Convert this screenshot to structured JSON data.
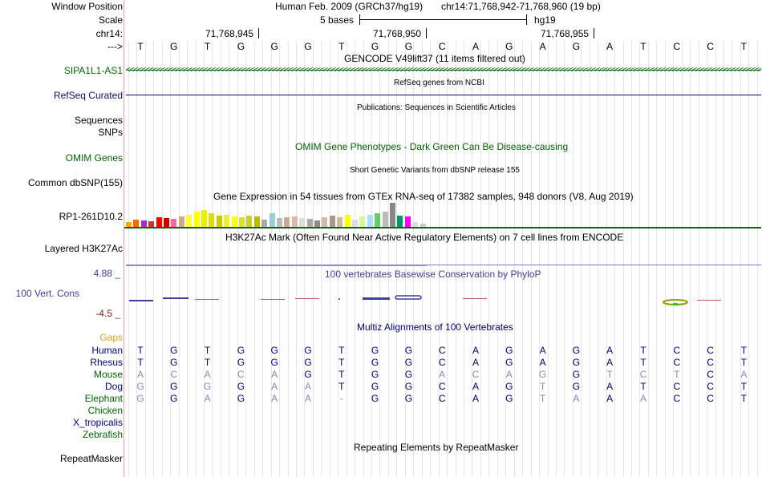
{
  "header": {
    "window_position_label": "Window Position",
    "assembly": "Human Feb. 2009 (GRCh37/hg19)",
    "position": "chr14:71,768,942-71,768,960 (19 bp)",
    "scale_label": "Scale",
    "scale_text": "5 bases",
    "scale_db": "hg19",
    "chrom_label": "chr14:",
    "ticks": [
      "71,768,945",
      "71,768,950",
      "71,768,955"
    ],
    "strand_label": "--->",
    "bases": [
      "T",
      "G",
      "T",
      "G",
      "G",
      "G",
      "T",
      "G",
      "G",
      "C",
      "A",
      "G",
      "A",
      "G",
      "A",
      "T",
      "C",
      "C",
      "T"
    ]
  },
  "tracks": {
    "gencode_title": "GENCODE V49lift37 (11 items filtered out)",
    "gencode_item": "SIPA1L1-AS1",
    "refseq_title": "RefSeq genes from NCBI",
    "refseq_label": "RefSeq Curated",
    "publications_title": "Publications: Sequences in Scientific Articles",
    "sequences_label": "Sequences",
    "snps_label": "SNPs",
    "omim_title": "OMIM Gene Phenotypes - Dark Green Can Be Disease-causing",
    "omim_label": "OMIM Genes",
    "dbsnp_title": "Short Genetic Variants from dbSNP release 155",
    "dbsnp_label": "Common dbSNP(155)",
    "gtex_title": "Gene Expression in 54 tissues from GTEx RNA-seq of 17382 samples, 948 donors (V8, Aug 2019)",
    "gtex_label": "RP1-261D10.2",
    "h3k27ac_title": "H3K27Ac Mark (Often Found Near Active Regulatory Elements) on 7 cell lines from ENCODE",
    "h3k27ac_label": "Layered H3K27Ac",
    "phylop_title": "100 vertebrates Basewise Conservation by PhyloP",
    "phylop_label": "100 Vert. Cons",
    "phylop_max": "4.88 _",
    "phylop_min": "-4.5 _",
    "gaps_label": "Gaps",
    "multiz_title": "Multiz Alignments of 100 Vertebrates",
    "rmsk_title": "Repeating Elements by RepeatMasker",
    "rmsk_label": "RepeatMasker"
  },
  "alignment": [
    {
      "species": "Human",
      "color": "#000080",
      "seq": [
        "T",
        "G",
        "T",
        "G",
        "G",
        "G",
        "T",
        "G",
        "G",
        "C",
        "A",
        "G",
        "A",
        "G",
        "A",
        "T",
        "C",
        "C",
        "T"
      ]
    },
    {
      "species": "Rhesus",
      "color": "#000080",
      "seq": [
        "T",
        "G",
        "T",
        "G",
        "G",
        "G",
        "T",
        "G",
        "G",
        "C",
        "A",
        "G",
        "A",
        "G",
        "A",
        "T",
        "C",
        "C",
        "T"
      ]
    },
    {
      "species": "Mouse",
      "color": "#006400",
      "seq": [
        "A",
        "C",
        "A",
        "C",
        "A",
        "G",
        "T",
        "G",
        "G",
        "A",
        "C",
        "A",
        "G",
        "G",
        "T",
        "C",
        "T",
        "C",
        "A"
      ]
    },
    {
      "species": "Dog",
      "color": "#000080",
      "seq": [
        "G",
        "G",
        "G",
        "G",
        "A",
        "A",
        "T",
        "G",
        "G",
        "C",
        "A",
        "G",
        "T",
        "G",
        "A",
        "T",
        "C",
        "C",
        "T"
      ]
    },
    {
      "species": "Elephant",
      "color": "#006400",
      "seq": [
        "G",
        "G",
        "A",
        "G",
        "A",
        "A",
        "-",
        "G",
        "G",
        "C",
        "A",
        "G",
        "T",
        "A",
        "A",
        "A",
        "C",
        "C",
        "T"
      ]
    },
    {
      "species": "Chicken",
      "color": "#006400",
      "seq": []
    },
    {
      "species": "X_tropicalis",
      "color": "#000080",
      "seq": []
    },
    {
      "species": "Zebrafish",
      "color": "#006400",
      "seq": []
    }
  ],
  "gtex_colors": [
    "#ffaa00",
    "#ff6600",
    "#9933cc",
    "#cc3333",
    "#ff0000",
    "#cc0000",
    "#ff6699",
    "#ccaa88",
    "#ffff33",
    "#ffff00",
    "#eeee00",
    "#dddd00",
    "#cccc00",
    "#eeee33",
    "#ffff00",
    "#dddd33",
    "#cccc33",
    "#bbbb00",
    "#aaaaaa",
    "#99ccdd",
    "#bbbbbb",
    "#c8aa99",
    "#ddbbaa",
    "#dddddd",
    "#aaaaaa",
    "#998877",
    "#ccbbaa",
    "#aa9988",
    "#ccbb99",
    "#ffff00",
    "#dddddd",
    "#ccff99",
    "#aaddff",
    "#66cc66",
    "#bbbbbb",
    "#888888",
    "#009966",
    "#ff00ff",
    "#dddddd",
    "#cccccc"
  ],
  "gtex_values": [
    6,
    9,
    8,
    7,
    12,
    11,
    10,
    13,
    16,
    20,
    22,
    18,
    14,
    15,
    13,
    12,
    14,
    13,
    9,
    18,
    11,
    12,
    13,
    11,
    10,
    8,
    12,
    14,
    12,
    15,
    9,
    13,
    16,
    18,
    20,
    31,
    14,
    13,
    6,
    4
  ],
  "colors": {
    "track_title": "#000000",
    "gene_blue": "#0c0c78",
    "omim_green": "#006400",
    "gencode_green": "#006a00",
    "phylop_blue": "#3f3f9e",
    "phylop_neg": "#8b1a1a",
    "gaps_orange": "#e0a020"
  }
}
